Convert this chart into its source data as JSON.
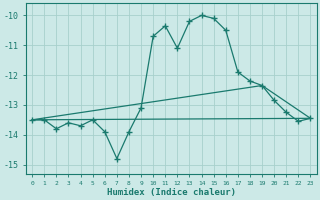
{
  "xlabel": "Humidex (Indice chaleur)",
  "ylabel": "",
  "background_color": "#cce9e7",
  "line_color": "#1a7a6e",
  "grid_color": "#a8d0cc",
  "xlim": [
    -0.5,
    23.5
  ],
  "ylim": [
    -15.3,
    -9.6
  ],
  "yticks": [
    -15,
    -14,
    -13,
    -12,
    -11,
    -10
  ],
  "xticks": [
    0,
    1,
    2,
    3,
    4,
    5,
    6,
    7,
    8,
    9,
    10,
    11,
    12,
    13,
    14,
    15,
    16,
    17,
    18,
    19,
    20,
    21,
    22,
    23
  ],
  "series0_x": [
    0,
    1,
    2,
    3,
    4,
    5,
    6,
    7,
    8,
    9,
    10,
    11,
    12,
    13,
    14,
    15,
    16,
    17,
    18,
    19,
    20,
    21,
    22,
    23
  ],
  "series0_y": [
    -13.5,
    -13.5,
    -13.8,
    -13.6,
    -13.7,
    -13.5,
    -13.9,
    -14.8,
    -13.9,
    -13.1,
    -10.7,
    -10.35,
    -11.1,
    -10.2,
    -10.0,
    -10.1,
    -10.5,
    -11.9,
    -12.2,
    -12.35,
    -12.85,
    -13.25,
    -13.55,
    -13.45
  ],
  "series1_x": [
    0,
    23
  ],
  "series1_y": [
    -13.5,
    -13.45
  ],
  "series2_x": [
    0,
    19,
    23
  ],
  "series2_y": [
    -13.5,
    -12.35,
    -13.45
  ]
}
